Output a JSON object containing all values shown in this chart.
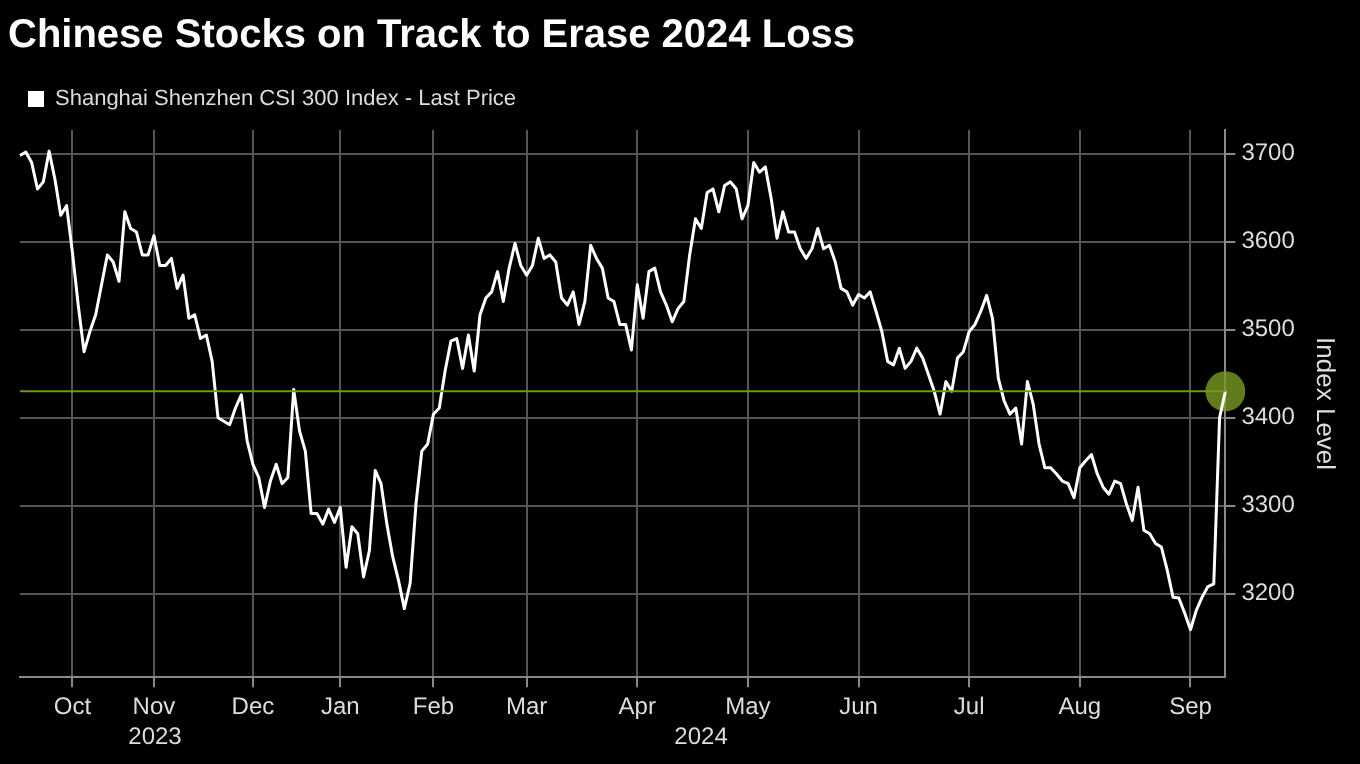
{
  "chart_data": {
    "type": "line",
    "title": "Chinese Stocks on Track to Erase 2024 Loss",
    "ylabel": "Index Level",
    "categories": [
      null,
      null,
      null,
      null,
      null,
      null,
      null,
      null,
      null,
      "Oct",
      null,
      null,
      null,
      null,
      null,
      null,
      null,
      null,
      null,
      null,
      null,
      null,
      null,
      "Nov",
      null,
      null,
      null,
      null,
      null,
      null,
      null,
      null,
      null,
      null,
      null,
      null,
      null,
      null,
      null,
      null,
      "Dec",
      null,
      null,
      null,
      null,
      null,
      null,
      null,
      null,
      null,
      null,
      null,
      null,
      null,
      null,
      "Jan",
      null,
      null,
      null,
      null,
      null,
      null,
      null,
      null,
      null,
      null,
      null,
      null,
      null,
      null,
      null,
      "Feb",
      null,
      null,
      null,
      null,
      null,
      null,
      null,
      null,
      null,
      null,
      null,
      null,
      null,
      null,
      null,
      "Mar",
      null,
      null,
      null,
      null,
      null,
      null,
      null,
      null,
      null,
      null,
      null,
      null,
      null,
      null,
      null,
      null,
      null,
      null,
      "Apr",
      null,
      null,
      null,
      null,
      null,
      null,
      null,
      null,
      null,
      null,
      null,
      null,
      null,
      null,
      null,
      null,
      null,
      null,
      "May",
      null,
      null,
      null,
      null,
      null,
      null,
      null,
      null,
      null,
      null,
      null,
      null,
      null,
      null,
      null,
      null,
      null,
      null,
      "Jun",
      null,
      null,
      null,
      null,
      null,
      null,
      null,
      null,
      null,
      null,
      null,
      null,
      null,
      null,
      null,
      null,
      null,
      null,
      "Jul",
      null,
      null,
      null,
      null,
      null,
      null,
      null,
      null,
      null,
      null,
      null,
      null,
      null,
      null,
      null,
      null,
      null,
      null,
      "Aug",
      null,
      null,
      null,
      null,
      null,
      null,
      null,
      null,
      null,
      null,
      null,
      null,
      null,
      null,
      null,
      null,
      null,
      null,
      "Sep",
      null,
      null,
      null,
      null,
      null,
      null
    ],
    "series": [
      {
        "name": "Shanghai Shenzhen CSI 300 Index - Last Price",
        "color": "#ffffff",
        "values": [
          3698,
          3702,
          3690,
          3660,
          3668,
          3703,
          3671,
          3630,
          3641,
          3588,
          3528,
          3475,
          3498,
          3517,
          3551,
          3585,
          3577,
          3555,
          3634,
          3615,
          3611,
          3585,
          3585,
          3607,
          3573,
          3573,
          3581,
          3547,
          3562,
          3513,
          3517,
          3490,
          3494,
          3464,
          3400,
          3396,
          3392,
          3411,
          3426,
          3374,
          3347,
          3332,
          3298,
          3328,
          3347,
          3325,
          3332,
          3432,
          3385,
          3362,
          3291,
          3291,
          3279,
          3296,
          3281,
          3298,
          3230,
          3276,
          3268,
          3219,
          3249,
          3340,
          3325,
          3279,
          3242,
          3215,
          3183,
          3212,
          3302,
          3362,
          3370,
          3404,
          3411,
          3453,
          3487,
          3490,
          3456,
          3494,
          3453,
          3517,
          3536,
          3543,
          3566,
          3532,
          3570,
          3598,
          3573,
          3562,
          3573,
          3604,
          3581,
          3585,
          3577,
          3536,
          3528,
          3543,
          3506,
          3532,
          3596,
          3581,
          3570,
          3536,
          3532,
          3506,
          3506,
          3477,
          3551,
          3513,
          3566,
          3570,
          3543,
          3528,
          3509,
          3524,
          3532,
          3585,
          3626,
          3615,
          3656,
          3660,
          3634,
          3664,
          3668,
          3660,
          3626,
          3641,
          3690,
          3679,
          3685,
          3649,
          3604,
          3634,
          3611,
          3611,
          3592,
          3581,
          3592,
          3615,
          3592,
          3596,
          3577,
          3547,
          3543,
          3528,
          3540,
          3536,
          3543,
          3521,
          3498,
          3464,
          3460,
          3479,
          3456,
          3464,
          3479,
          3468,
          3449,
          3430,
          3404,
          3441,
          3430,
          3468,
          3475,
          3498,
          3506,
          3521,
          3539,
          3513,
          3445,
          3419,
          3404,
          3411,
          3370,
          3441,
          3415,
          3370,
          3343,
          3343,
          3336,
          3328,
          3325,
          3309,
          3343,
          3351,
          3358,
          3336,
          3321,
          3313,
          3328,
          3325,
          3302,
          3283,
          3321,
          3272,
          3268,
          3257,
          3253,
          3227,
          3196,
          3195,
          3178,
          3159,
          3181,
          3196,
          3208,
          3211,
          3400,
          3430
        ]
      },
      {
        "type": "scatter",
        "marker": "circle",
        "color": "#7a9a24",
        "values": [
          null,
          null,
          null,
          null,
          null,
          null,
          null,
          null,
          null,
          null,
          null,
          null,
          null,
          null,
          null,
          null,
          null,
          null,
          null,
          null,
          null,
          null,
          null,
          null,
          null,
          null,
          null,
          null,
          null,
          null,
          null,
          null,
          null,
          null,
          null,
          null,
          null,
          null,
          null,
          null,
          null,
          null,
          null,
          null,
          null,
          null,
          null,
          null,
          null,
          null,
          null,
          null,
          null,
          null,
          null,
          null,
          null,
          null,
          null,
          null,
          null,
          null,
          null,
          null,
          null,
          null,
          null,
          null,
          null,
          null,
          null,
          null,
          null,
          null,
          null,
          null,
          null,
          null,
          null,
          null,
          null,
          null,
          null,
          null,
          null,
          null,
          null,
          null,
          null,
          null,
          null,
          null,
          null,
          null,
          null,
          null,
          null,
          null,
          null,
          null,
          null,
          null,
          null,
          null,
          null,
          null,
          null,
          null,
          null,
          null,
          null,
          null,
          null,
          null,
          null,
          null,
          null,
          null,
          null,
          null,
          null,
          null,
          null,
          null,
          null,
          null,
          null,
          null,
          null,
          null,
          null,
          null,
          null,
          null,
          null,
          null,
          null,
          null,
          null,
          null,
          null,
          null,
          null,
          null,
          null,
          null,
          null,
          null,
          null,
          null,
          null,
          null,
          null,
          null,
          null,
          null,
          null,
          null,
          null,
          null,
          null,
          null,
          null,
          null,
          null,
          null,
          null,
          null,
          null,
          null,
          null,
          null,
          null,
          null,
          null,
          null,
          null,
          null,
          null,
          null,
          null,
          null,
          null,
          null,
          null,
          null,
          null,
          null,
          null,
          null,
          null,
          null,
          null,
          null,
          null,
          null,
          null,
          null,
          null,
          null,
          null,
          null,
          null,
          null,
          null,
          null,
          null,
          3430
        ]
      }
    ],
    "ylim": [
      3105,
      3727
    ],
    "yticks": [
      3200,
      3300,
      3400,
      3500,
      3600,
      3700
    ],
    "ref_lines": [
      {
        "axis": "y",
        "value": 3430,
        "color": "#6e9a1e"
      }
    ],
    "annotations": [
      "2023",
      "2024"
    ],
    "grid": true,
    "legend": "top left",
    "marker": "none"
  }
}
